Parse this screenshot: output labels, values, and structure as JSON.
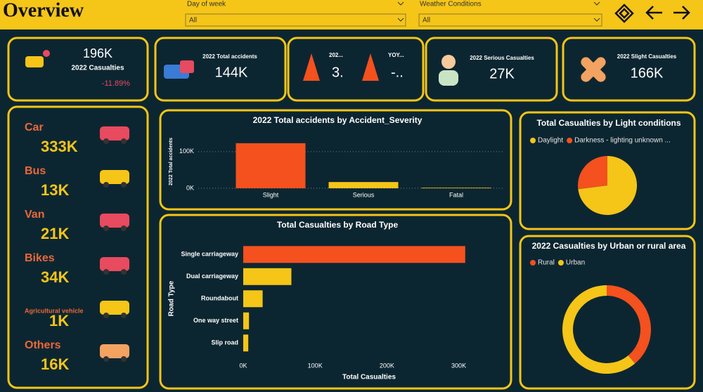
{
  "header": {
    "title": "Overview"
  },
  "filters": [
    {
      "label": "Day of week",
      "value": "All"
    },
    {
      "label": "Weather Conditions",
      "value": "All"
    }
  ],
  "kpis": [
    {
      "value": "196K",
      "label": "2022 Casualties",
      "change": "-11.89%"
    },
    {
      "label": "2022 Total accidents",
      "value": "144K"
    },
    {
      "label": "202...",
      "value": "3."
    },
    {
      "label": "YOY...",
      "value": "-.."
    },
    {
      "label": "2022 Serious Casualties",
      "value": "27K"
    },
    {
      "label": "2022 Slight Casualties",
      "value": "166K"
    }
  ],
  "vehicles": [
    {
      "name": "Car",
      "value": "333K"
    },
    {
      "name": "Bus",
      "value": "13K"
    },
    {
      "name": "Van",
      "value": "21K"
    },
    {
      "name": "Bikes",
      "value": "34K"
    },
    {
      "name": "Agricultural vehicle",
      "value": "1K"
    },
    {
      "name": "Others",
      "value": "16K"
    }
  ],
  "chart_data": [
    {
      "type": "bar",
      "title": "2022 Total accidents by Accident_Severity",
      "ylabel": "2022 Total accidents",
      "categories": [
        "Slight",
        "Serious",
        "Fatal"
      ],
      "values": [
        123000,
        17000,
        1500
      ],
      "colors": [
        "#f4511e",
        "#f5c518",
        "#f5c518"
      ],
      "ylim": [
        0,
        140000
      ],
      "yticks": [
        {
          "value": 0,
          "label": "0K"
        },
        {
          "value": 100000,
          "label": "100K"
        }
      ],
      "grid": true
    },
    {
      "type": "hbar",
      "title": "Total Casualties by Road Type",
      "xlabel": "Total Casualties",
      "ylabel": "Road Type",
      "categories": [
        "Single carriageway",
        "Dual carriageway",
        "Roundabout",
        "One way street",
        "Slip road"
      ],
      "values": [
        309000,
        67000,
        27000,
        8000,
        7000
      ],
      "colors": [
        "#f4511e",
        "#f5c518",
        "#f5c518",
        "#f5c518",
        "#f5c518"
      ],
      "xlim": [
        0,
        320000
      ],
      "xticks": [
        {
          "value": 0,
          "label": "0K"
        },
        {
          "value": 100000,
          "label": "100K"
        },
        {
          "value": 200000,
          "label": "200K"
        },
        {
          "value": 300000,
          "label": "300K"
        }
      ],
      "grid": false
    },
    {
      "type": "pie",
      "title": "Total Casualties by Light conditions",
      "categories": [
        "Daylight",
        "Darkness - lighting unknown ..."
      ],
      "values": [
        73,
        27
      ],
      "colors": [
        "#f5c518",
        "#f4511e"
      ]
    },
    {
      "type": "donut",
      "title": "2022 Casualties by Urban or rural area",
      "categories": [
        "Rural",
        "Urban"
      ],
      "values": [
        39,
        61
      ],
      "colors": [
        "#f4511e",
        "#f5c518"
      ]
    }
  ]
}
